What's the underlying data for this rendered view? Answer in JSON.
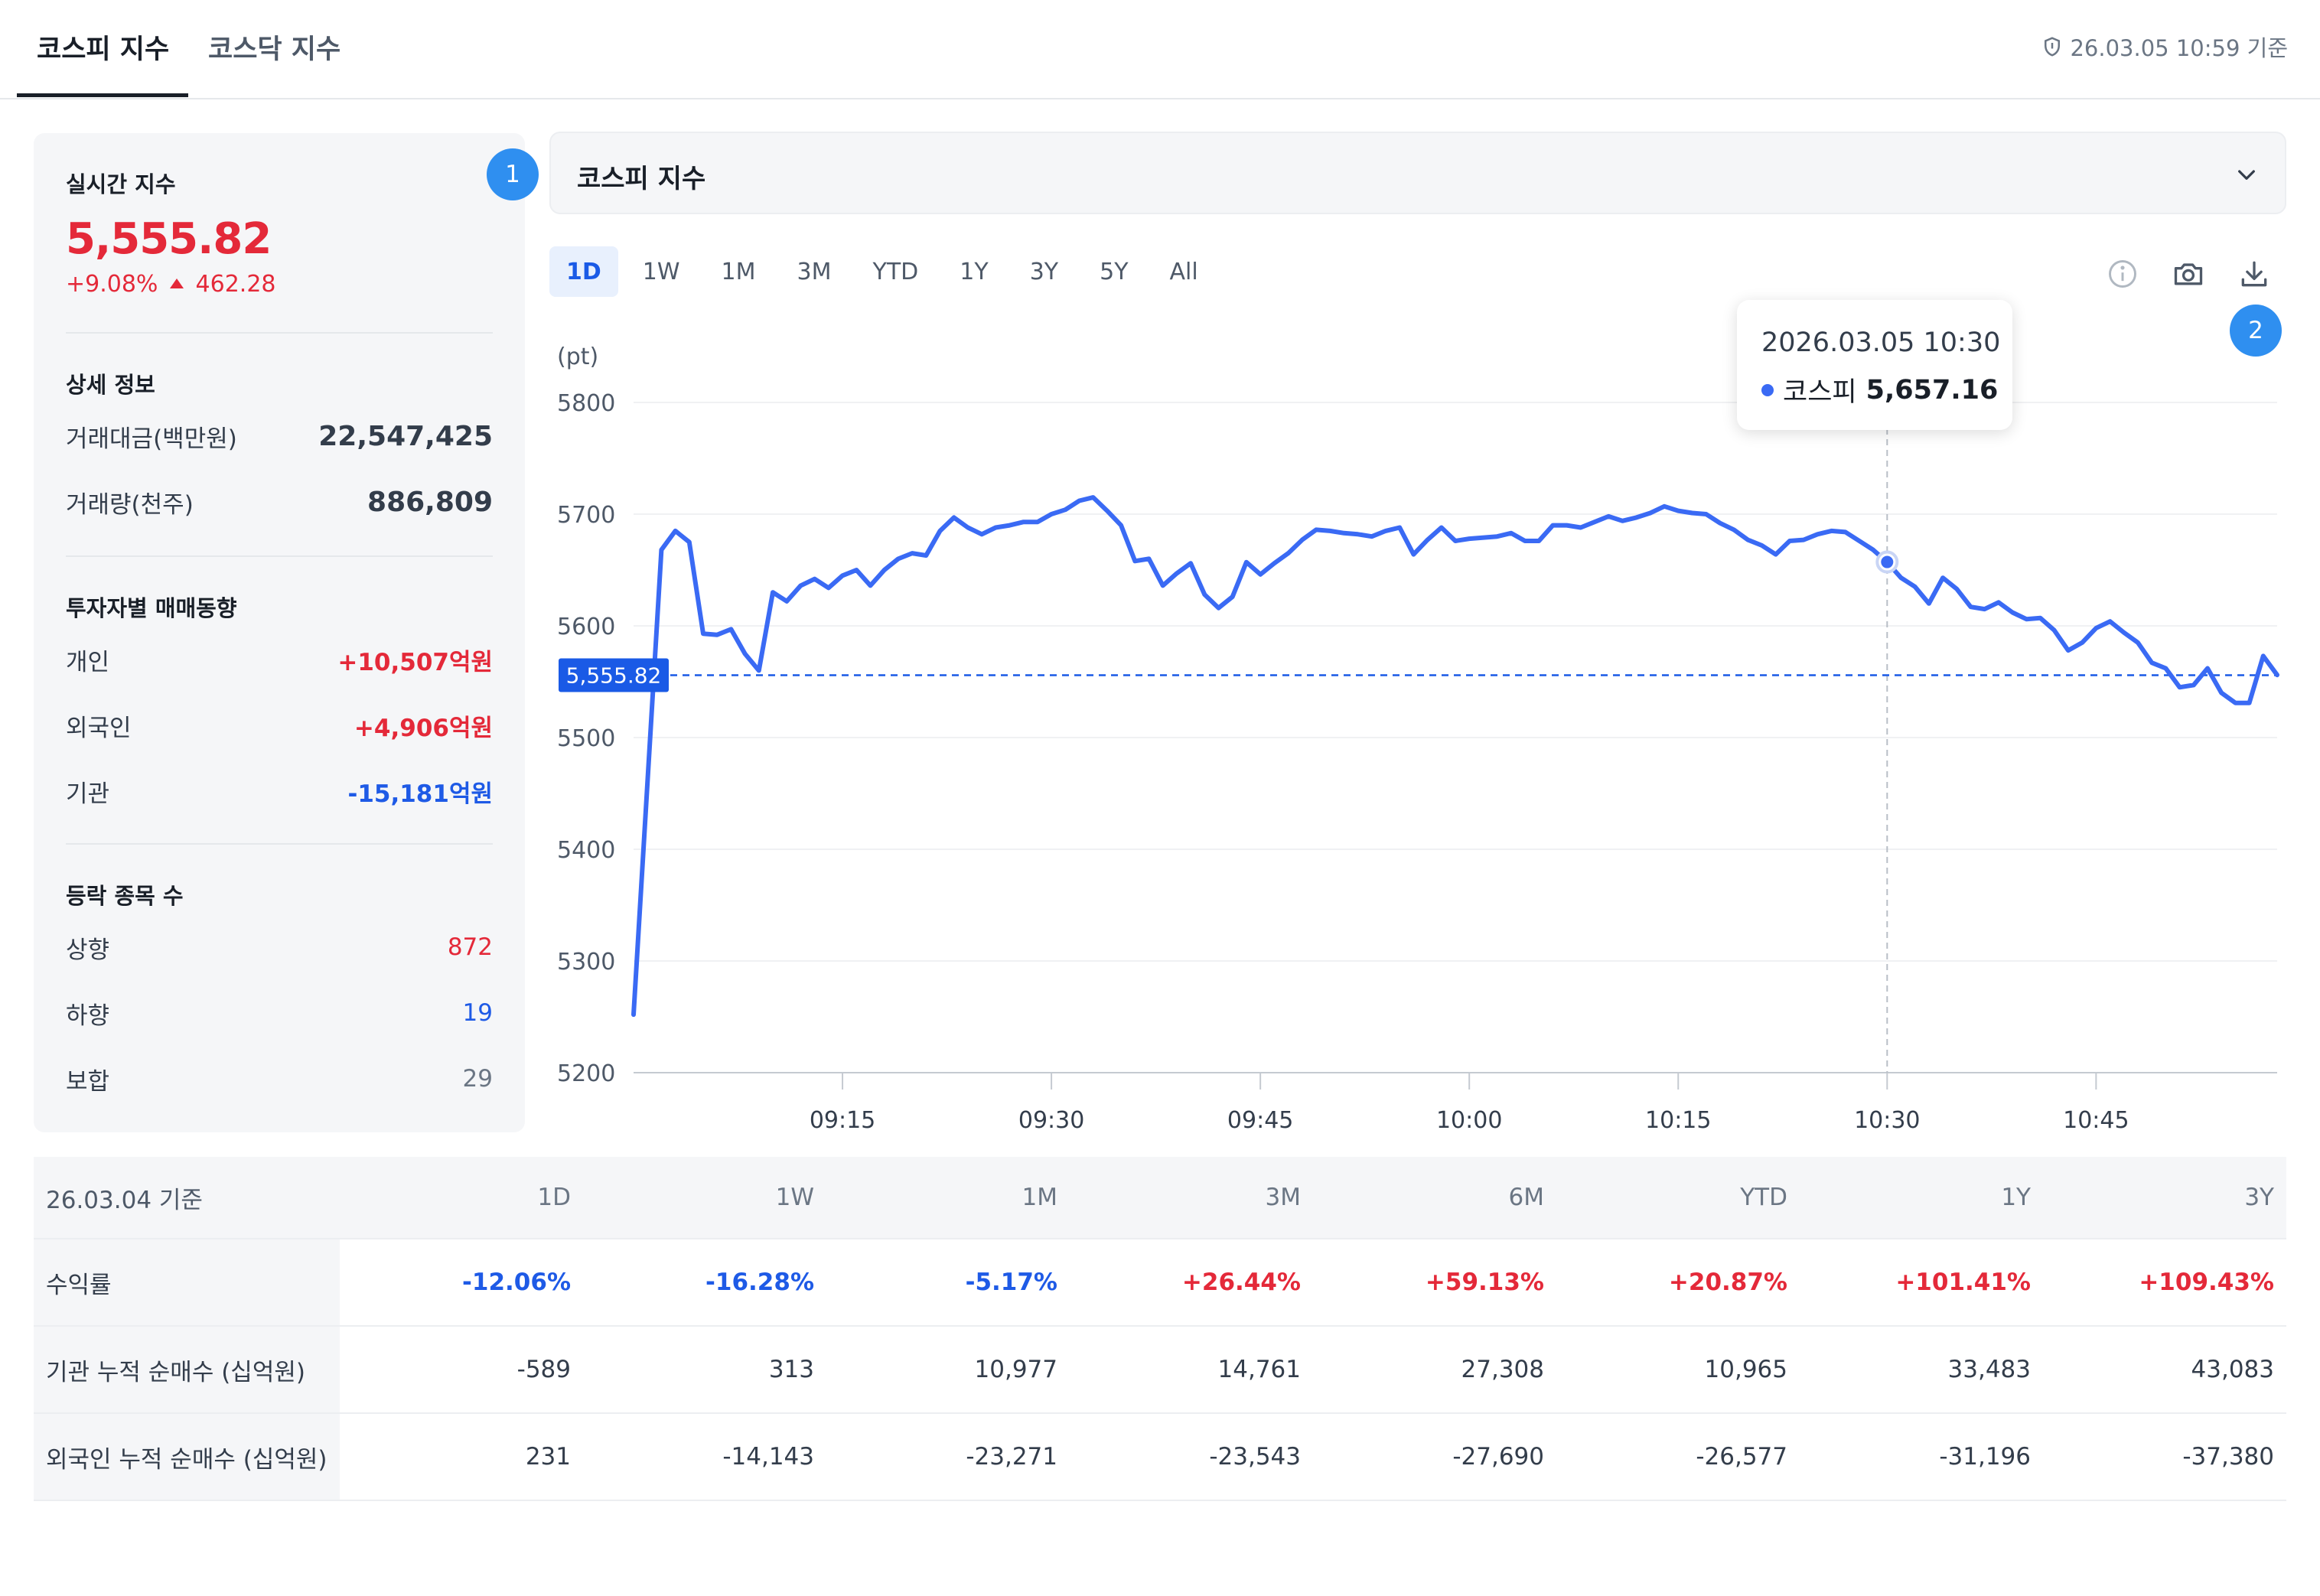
{
  "tabs": [
    {
      "label": "코스피 지수",
      "active": true
    },
    {
      "label": "코스닥 지수",
      "active": false
    }
  ],
  "timestamp": "26.03.05 10:59 기준",
  "left": {
    "realtime_label": "실시간 지수",
    "index_value": "5,555.82",
    "change_pct": "+9.08%",
    "change_abs": "462.28",
    "badge1": "1",
    "details_label": "상세 정보",
    "trade_amount_label": "거래대금(백만원)",
    "trade_amount_value": "22,547,425",
    "volume_label": "거래량(천주)",
    "volume_value": "886,809",
    "investor_label": "투자자별 매매동향",
    "investors": [
      {
        "label": "개인",
        "value": "+10,507억원",
        "tone": "red"
      },
      {
        "label": "외국인",
        "value": "+4,906억원",
        "tone": "red"
      },
      {
        "label": "기관",
        "value": "-15,181억원",
        "tone": "blue"
      }
    ],
    "breadth_label": "등락 종목 수",
    "breadth": [
      {
        "label": "상향",
        "value": "872",
        "tone": "red"
      },
      {
        "label": "하향",
        "value": "19",
        "tone": "blue"
      },
      {
        "label": "보합",
        "value": "29",
        "tone": "gray"
      }
    ]
  },
  "select": {
    "label": "코스피 지수"
  },
  "periods": [
    "1D",
    "1W",
    "1M",
    "3M",
    "YTD",
    "1Y",
    "3Y",
    "5Y",
    "All"
  ],
  "active_period": "1D",
  "badge2": "2",
  "icons": {
    "info": "info-icon",
    "camera": "camera-icon",
    "download": "download-icon",
    "chevron": "chevron-down-icon",
    "shield": "shield-icon"
  },
  "tooltip": {
    "datetime": "2026.03.05 10:30",
    "series": "코스피",
    "value": "5,657.16"
  },
  "chart_data": {
    "type": "line",
    "ylabel": "(pt)",
    "ylim": [
      5200,
      5800
    ],
    "yticks": [
      5200,
      5300,
      5400,
      5500,
      5600,
      5700,
      5800
    ],
    "xticks": [
      "09:15",
      "09:30",
      "09:45",
      "10:00",
      "10:15",
      "10:30",
      "10:45"
    ],
    "xlim": [
      "09:00",
      "10:58"
    ],
    "current_value": 5555.82,
    "current_label": "5,555.82",
    "highlight": {
      "x": "10:30",
      "y": 5657.16
    },
    "line_color": "#3a6af4",
    "series": [
      {
        "values": [
          [
            "09:00",
            5252
          ],
          [
            "09:02",
            5668
          ],
          [
            "09:03",
            5685
          ],
          [
            "09:04",
            5675
          ],
          [
            "09:05",
            5593
          ],
          [
            "09:06",
            5592
          ],
          [
            "09:07",
            5597
          ],
          [
            "09:08",
            5575
          ],
          [
            "09:09",
            5560
          ],
          [
            "09:10",
            5630
          ],
          [
            "09:11",
            5622
          ],
          [
            "09:12",
            5636
          ],
          [
            "09:13",
            5642
          ],
          [
            "09:14",
            5634
          ],
          [
            "09:15",
            5645
          ],
          [
            "09:16",
            5650
          ],
          [
            "09:17",
            5636
          ],
          [
            "09:18",
            5650
          ],
          [
            "09:19",
            5660
          ],
          [
            "09:20",
            5665
          ],
          [
            "09:21",
            5663
          ],
          [
            "09:22",
            5685
          ],
          [
            "09:23",
            5697
          ],
          [
            "09:24",
            5688
          ],
          [
            "09:25",
            5682
          ],
          [
            "09:26",
            5688
          ],
          [
            "09:27",
            5690
          ],
          [
            "09:28",
            5693
          ],
          [
            "09:29",
            5693
          ],
          [
            "09:30",
            5700
          ],
          [
            "09:31",
            5704
          ],
          [
            "09:32",
            5712
          ],
          [
            "09:33",
            5715
          ],
          [
            "09:34",
            5703
          ],
          [
            "09:35",
            5690
          ],
          [
            "09:36",
            5658
          ],
          [
            "09:37",
            5660
          ],
          [
            "09:38",
            5636
          ],
          [
            "09:39",
            5647
          ],
          [
            "09:40",
            5656
          ],
          [
            "09:41",
            5628
          ],
          [
            "09:42",
            5616
          ],
          [
            "09:43",
            5626
          ],
          [
            "09:44",
            5657
          ],
          [
            "09:45",
            5646
          ],
          [
            "09:46",
            5656
          ],
          [
            "09:47",
            5665
          ],
          [
            "09:48",
            5677
          ],
          [
            "09:49",
            5686
          ],
          [
            "09:50",
            5685
          ],
          [
            "09:51",
            5683
          ],
          [
            "09:52",
            5682
          ],
          [
            "09:53",
            5680
          ],
          [
            "09:54",
            5685
          ],
          [
            "09:55",
            5688
          ],
          [
            "09:56",
            5664
          ],
          [
            "09:57",
            5677
          ],
          [
            "09:58",
            5688
          ],
          [
            "09:59",
            5676
          ],
          [
            "10:00",
            5678
          ],
          [
            "10:02",
            5680
          ],
          [
            "10:03",
            5683
          ],
          [
            "10:04",
            5676
          ],
          [
            "10:05",
            5676
          ],
          [
            "10:06",
            5690
          ],
          [
            "10:07",
            5690
          ],
          [
            "10:08",
            5688
          ],
          [
            "10:09",
            5693
          ],
          [
            "10:10",
            5698
          ],
          [
            "10:11",
            5694
          ],
          [
            "10:12",
            5697
          ],
          [
            "10:13",
            5701
          ],
          [
            "10:14",
            5707
          ],
          [
            "10:15",
            5703
          ],
          [
            "10:16",
            5701
          ],
          [
            "10:17",
            5700
          ],
          [
            "10:18",
            5692
          ],
          [
            "10:19",
            5686
          ],
          [
            "10:20",
            5677
          ],
          [
            "10:21",
            5672
          ],
          [
            "10:22",
            5664
          ],
          [
            "10:23",
            5676
          ],
          [
            "10:24",
            5677
          ],
          [
            "10:25",
            5682
          ],
          [
            "10:26",
            5685
          ],
          [
            "10:27",
            5684
          ],
          [
            "10:28",
            5676
          ],
          [
            "10:29",
            5668
          ],
          [
            "10:30",
            5657
          ],
          [
            "10:31",
            5643
          ],
          [
            "10:32",
            5635
          ],
          [
            "10:33",
            5620
          ],
          [
            "10:34",
            5643
          ],
          [
            "10:35",
            5633
          ],
          [
            "10:36",
            5617
          ],
          [
            "10:37",
            5615
          ],
          [
            "10:38",
            5621
          ],
          [
            "10:39",
            5612
          ],
          [
            "10:40",
            5606
          ],
          [
            "10:41",
            5607
          ],
          [
            "10:42",
            5596
          ],
          [
            "10:43",
            5578
          ],
          [
            "10:44",
            5585
          ],
          [
            "10:45",
            5598
          ],
          [
            "10:46",
            5604
          ],
          [
            "10:47",
            5594
          ],
          [
            "10:48",
            5585
          ],
          [
            "10:49",
            5567
          ],
          [
            "10:50",
            5562
          ],
          [
            "10:51",
            5545
          ],
          [
            "10:52",
            5547
          ],
          [
            "10:53",
            5562
          ],
          [
            "10:54",
            5540
          ],
          [
            "10:55",
            5531
          ],
          [
            "10:56",
            5531
          ],
          [
            "10:57",
            5573
          ],
          [
            "10:58",
            5556
          ]
        ]
      }
    ]
  },
  "table": {
    "header_first": "26.03.04 기준",
    "columns": [
      "1D",
      "1W",
      "1M",
      "3M",
      "6M",
      "YTD",
      "1Y",
      "3Y"
    ],
    "rows": [
      {
        "label": "수익률",
        "values": [
          "-12.06%",
          "-16.28%",
          "-5.17%",
          "+26.44%",
          "+59.13%",
          "+20.87%",
          "+101.41%",
          "+109.43%"
        ],
        "colored": true
      },
      {
        "label": "기관 누적 순매수 (십억원)",
        "values": [
          "-589",
          "313",
          "10,977",
          "14,761",
          "27,308",
          "10,965",
          "33,483",
          "43,083"
        ],
        "colored": false
      },
      {
        "label": "외국인 누적 순매수 (십억원)",
        "values": [
          "231",
          "-14,143",
          "-23,271",
          "-23,543",
          "-27,690",
          "-26,577",
          "-31,196",
          "-37,380"
        ],
        "colored": false
      }
    ]
  }
}
